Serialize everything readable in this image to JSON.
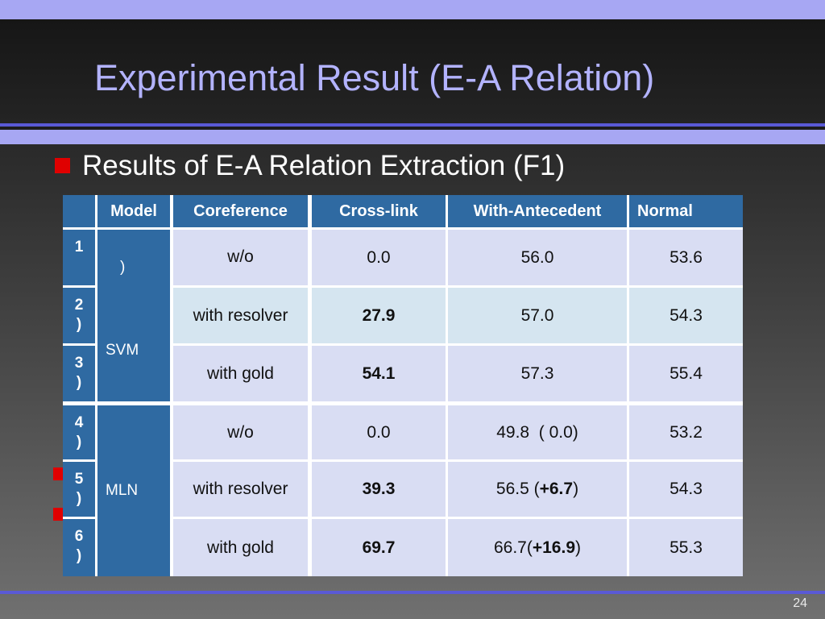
{
  "slide": {
    "title": "Experimental Result (E-A Relation)",
    "subtitle": "Results of E-A Relation Extraction (F1)",
    "page_number": "24",
    "colors": {
      "title": "#b3b3ff",
      "bullet": "#e00000",
      "table_header": "#2f6aa2",
      "band": "#a7a7f3"
    }
  },
  "table": {
    "headers": [
      "Model",
      "Coreference",
      "Cross-link",
      "With-Antecedent",
      "Normal"
    ],
    "row_index_labels": [
      {
        "num": "1",
        "paren": ""
      },
      {
        "num": "2",
        "paren": ")"
      },
      {
        "num": "3",
        "paren": ")"
      },
      {
        "num": "4",
        "paren": ")"
      },
      {
        "num": "5",
        "paren": ")"
      },
      {
        "num": "6",
        "paren": ")"
      }
    ],
    "groups": [
      {
        "paren": ")",
        "name": "SVM"
      },
      {
        "paren": "",
        "name": "MLN"
      }
    ],
    "rows": [
      {
        "coref": "w/o",
        "crosslink": "0.0",
        "with_ante": "56.0",
        "with_ante_delta": "",
        "normal": "53.6"
      },
      {
        "coref": "with resolver",
        "crosslink": "27.9",
        "with_ante": "57.0",
        "with_ante_delta": "",
        "normal": "54.3"
      },
      {
        "coref": "with gold",
        "crosslink": "54.1",
        "with_ante": "57.3",
        "with_ante_delta": "",
        "normal": "55.4"
      },
      {
        "coref": "w/o",
        "crosslink": "0.0",
        "with_ante": "49.8  ( 0.0)",
        "with_ante_delta": "",
        "normal": "53.2"
      },
      {
        "coref": "with resolver",
        "crosslink": "39.3",
        "with_ante_pre": "56.5 (",
        "with_ante_delta": "+6.7",
        "with_ante_post": ")",
        "normal": "54.3"
      },
      {
        "coref": "with gold",
        "crosslink": "69.7",
        "with_ante_pre": "66.7(",
        "with_ante_delta": "+16.9",
        "with_ante_post": ")",
        "normal": "55.3"
      }
    ]
  }
}
